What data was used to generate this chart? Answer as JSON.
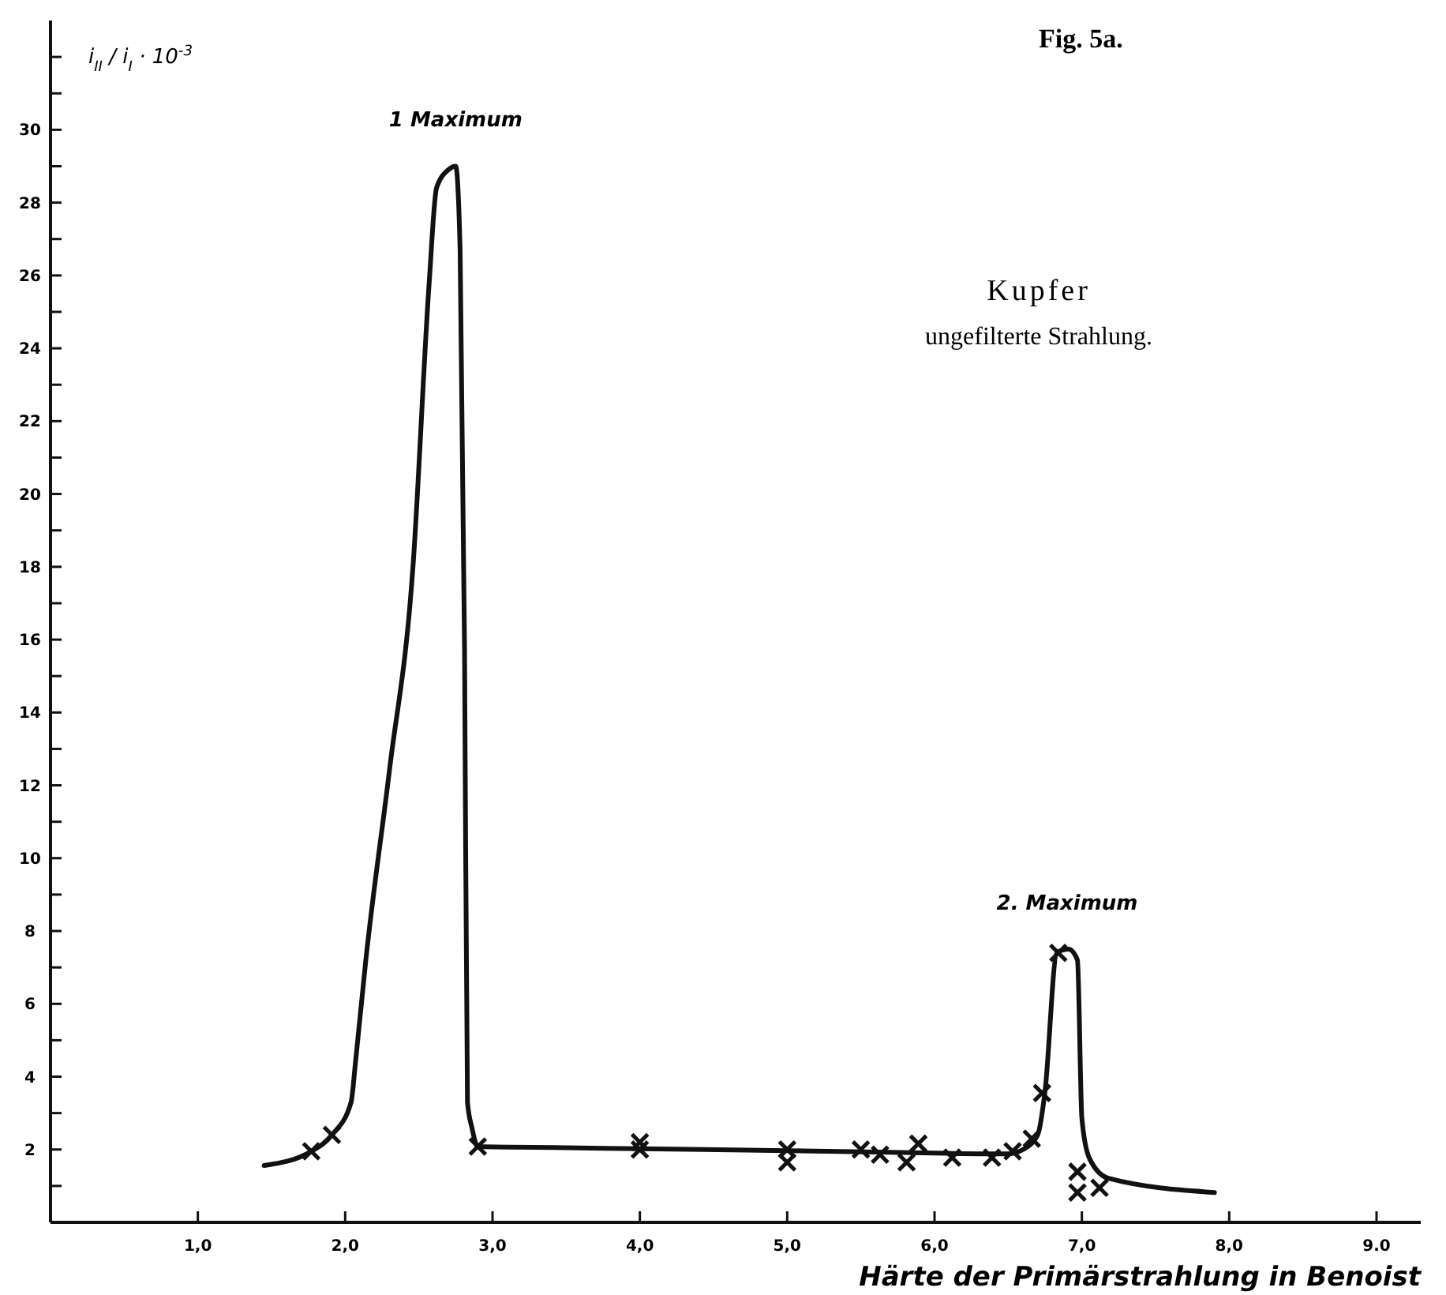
{
  "chart_data": {
    "type": "line",
    "title": "Fig. 5a.",
    "subtitle": "Kupfer",
    "xlabel": "Härte der Primärstrahlung in Benoist",
    "ylabel": "i$_{II}$ / i$_{I}$ · 10$^{-3}$",
    "annotations": [
      "ungefilterte Strahlung.",
      {
        "text": "1 Maximum",
        "x": 2.75,
        "y": 29
      },
      {
        "text": "2. Maximum",
        "x": 6.9,
        "y": 7.5
      }
    ],
    "xlim": [
      0,
      9.3
    ],
    "ylim": [
      0,
      33
    ],
    "xticks": [
      {
        "value": 1,
        "label": "1,0"
      },
      {
        "value": 2,
        "label": "2,0"
      },
      {
        "value": 3,
        "label": "3,0"
      },
      {
        "value": 4,
        "label": "4,0"
      },
      {
        "value": 5,
        "label": "5,0"
      },
      {
        "value": 6,
        "label": "6,0"
      },
      {
        "value": 7,
        "label": "7,0"
      },
      {
        "value": 8,
        "label": "8,0"
      },
      {
        "value": 9,
        "label": "9.0"
      }
    ],
    "yticks": [
      {
        "value": 1,
        "label": null
      },
      2,
      {
        "value": 3,
        "label": null
      },
      4,
      {
        "value": 5,
        "label": null
      },
      6,
      {
        "value": 7,
        "label": null
      },
      8,
      {
        "value": 9,
        "label": null
      },
      10,
      {
        "value": 11,
        "label": null
      },
      12,
      {
        "value": 13,
        "label": null
      },
      14,
      {
        "value": 15,
        "label": null
      },
      16,
      {
        "value": 17,
        "label": null
      },
      18,
      {
        "value": 19,
        "label": null
      },
      20,
      {
        "value": 21,
        "label": null
      },
      22,
      {
        "value": 23,
        "label": null
      },
      24,
      {
        "value": 25,
        "label": null
      },
      26,
      {
        "value": 27,
        "label": null
      },
      28,
      {
        "value": 29,
        "label": null
      },
      30,
      {
        "value": 31,
        "label": null
      },
      {
        "value": 32,
        "label": null
      }
    ],
    "series": [
      {
        "color": "#111111",
        "marker": "none",
        "x": [
          1.45,
          1.77,
          1.91,
          2.04,
          2.07,
          2.14,
          2.3,
          2.46,
          2.57,
          2.62,
          2.7,
          2.75,
          2.78,
          2.81,
          2.83,
          2.86,
          2.9,
          3.5,
          4.0,
          5.0,
          6.0,
          6.5,
          6.6,
          6.7,
          6.75,
          6.83,
          6.91,
          6.97,
          7.0,
          7.05,
          7.18,
          7.9
        ],
        "values": [
          1.56,
          1.95,
          2.4,
          3.3,
          4.4,
          7.2,
          12.4,
          18,
          25.8,
          28.4,
          28.9,
          29,
          26.7,
          15.8,
          3.3,
          2.6,
          2.08,
          2.05,
          2.02,
          1.97,
          1.9,
          1.88,
          2.0,
          2.4,
          3.6,
          7.4,
          7.5,
          7.2,
          2.86,
          1.77,
          1.21,
          0.82
        ]
      },
      {
        "type": "scatter",
        "color": "#111111",
        "marker": "cross",
        "x": [
          1.77,
          1.91,
          2.9,
          4.0,
          4.0,
          5.0,
          5.0,
          5.5,
          5.63,
          5.81,
          5.89,
          6.12,
          6.39,
          6.53,
          6.66,
          6.73,
          6.84,
          6.97,
          6.97,
          7.12
        ],
        "values": [
          1.95,
          2.4,
          2.08,
          2.2,
          2.0,
          2.0,
          1.65,
          2.0,
          1.86,
          1.65,
          2.16,
          1.78,
          1.78,
          1.95,
          2.3,
          3.55,
          7.4,
          1.39,
          0.82,
          0.95
        ]
      }
    ]
  }
}
